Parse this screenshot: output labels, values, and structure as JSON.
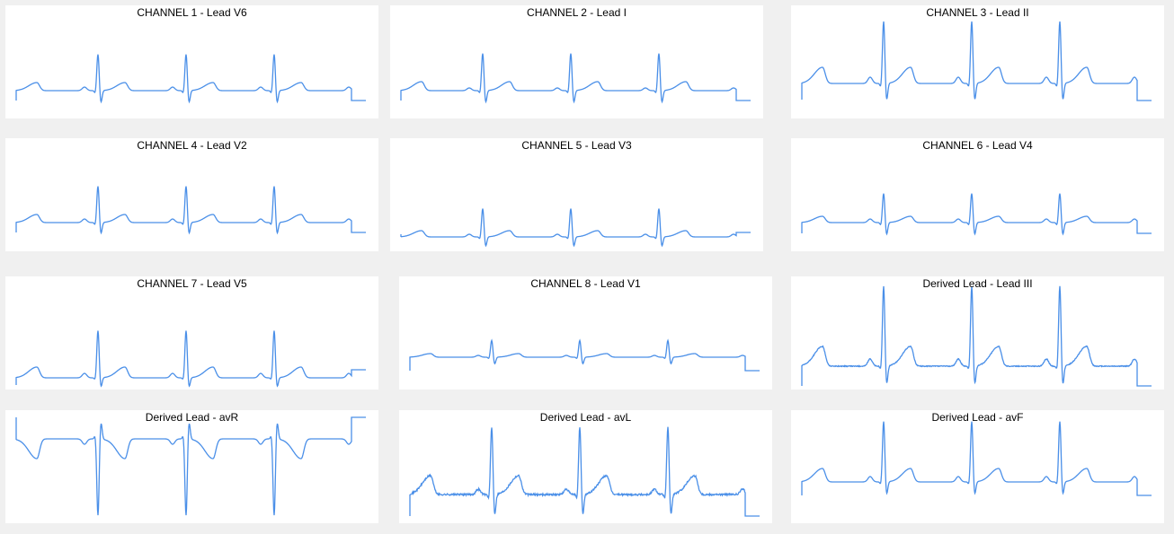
{
  "line_color": "#4a8fe8",
  "background_color": "#f0f0f0",
  "chart_data": [
    {
      "type": "line",
      "title": "CHANNEL 1 - Lead V6",
      "beats": 3,
      "baseline": 0,
      "r": 41,
      "s": -14,
      "t": 9,
      "p": 4,
      "start": -11,
      "end": -11,
      "noise": 0
    },
    {
      "type": "line",
      "title": "CHANNEL 2 - Lead I",
      "beats": 3,
      "baseline": 0,
      "r": 42,
      "s": -14,
      "t": 10,
      "p": 3,
      "start": -11,
      "end": -11,
      "noise": 0
    },
    {
      "type": "line",
      "title": "CHANNEL 3 - Lead II",
      "beats": 3,
      "baseline": 0,
      "r": 70,
      "s": -20,
      "t": 18,
      "p": 7,
      "start": -18,
      "end": -19,
      "noise": 0
    },
    {
      "type": "line",
      "title": "CHANNEL 4 - Lead V2",
      "beats": 3,
      "baseline": 0,
      "r": 41,
      "s": -13,
      "t": 9,
      "p": 4,
      "start": -11,
      "end": -11,
      "noise": 0
    },
    {
      "type": "line",
      "title": "CHANNEL 5 - Lead V3",
      "beats": 3,
      "baseline": 0,
      "r": 32,
      "s": -11,
      "t": 7,
      "p": 3,
      "start": 3,
      "end": 5,
      "noise": 0
    },
    {
      "type": "line",
      "title": "CHANNEL 6 - Lead V4",
      "beats": 3,
      "baseline": 0,
      "r": 33,
      "s": -14,
      "t": 7,
      "p": 4,
      "start": -12,
      "end": -12,
      "noise": 0
    },
    {
      "type": "line",
      "title": "CHANNEL 7 - Lead V5",
      "beats": 3,
      "baseline": 0,
      "r": 53,
      "s": -11,
      "t": 12,
      "p": 5,
      "start": -8,
      "end": 9,
      "noise": 0
    },
    {
      "type": "line",
      "title": "CHANNEL 8 - Lead V1",
      "beats": 3,
      "baseline": 0,
      "r": 19,
      "s": -8,
      "t": 4,
      "p": 2,
      "start": -15,
      "end": -15,
      "noise": 0
    },
    {
      "type": "line",
      "title": "Derived Lead - Lead III",
      "beats": 3,
      "baseline": 0,
      "r": 90,
      "s": -22,
      "t": 22,
      "p": 8,
      "start": -22,
      "end": -22,
      "noise": 0.5
    },
    {
      "type": "line",
      "title": "Derived Lead - avR",
      "beats": 3,
      "baseline": 0,
      "r": -86,
      "s": 20,
      "t": -22,
      "p": -6,
      "start": 24,
      "end": 24,
      "noise": 0
    },
    {
      "type": "line",
      "title": "Derived Lead - avL",
      "beats": 3,
      "baseline": 0,
      "r": 76,
      "s": -24,
      "t": 21,
      "p": 6,
      "start": -24,
      "end": -24,
      "noise": 1
    },
    {
      "type": "line",
      "title": "Derived Lead - avF",
      "beats": 3,
      "baseline": 0,
      "r": 68,
      "s": -15,
      "t": 15,
      "p": 6,
      "start": -15,
      "end": -15,
      "noise": 0
    }
  ]
}
